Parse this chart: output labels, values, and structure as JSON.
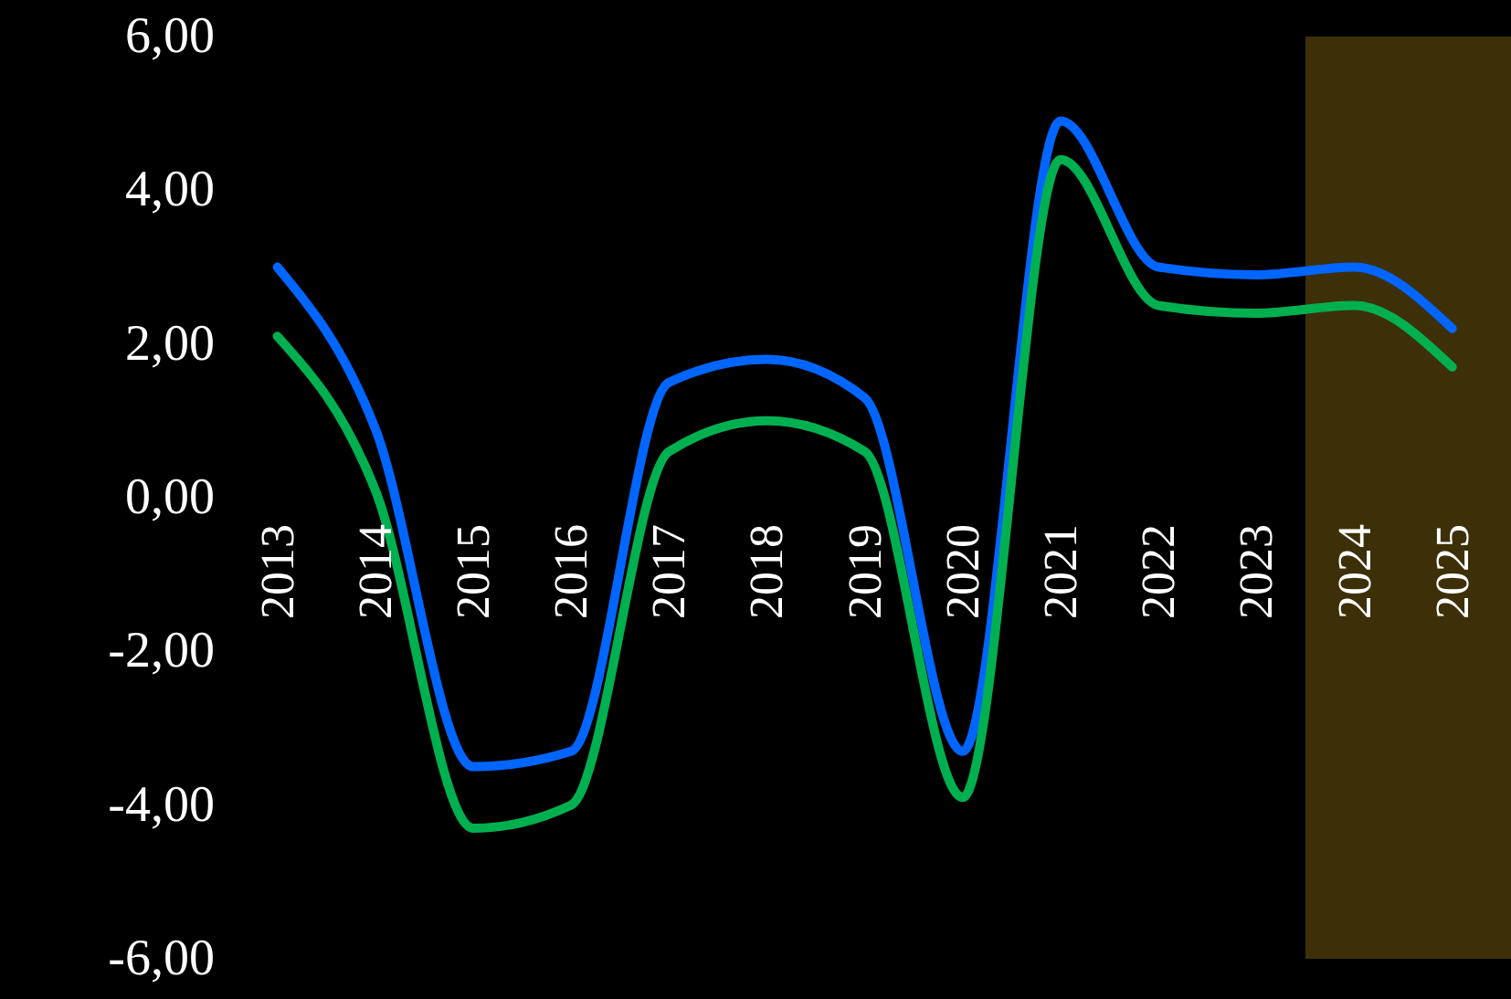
{
  "chart_data": {
    "type": "line",
    "categories": [
      "2013",
      "2014",
      "2015",
      "2016",
      "2017",
      "2018",
      "2019",
      "2020",
      "2021",
      "2022",
      "2023",
      "2024",
      "2025"
    ],
    "series": [
      {
        "color": "#0066ff",
        "values": [
          3.0,
          0.9,
          -3.5,
          -3.3,
          1.5,
          1.8,
          1.3,
          -3.3,
          4.9,
          3.0,
          2.9,
          3.0,
          2.2
        ]
      },
      {
        "color": "#00b050",
        "values": [
          2.1,
          0.1,
          -4.3,
          -4.0,
          0.6,
          1.0,
          0.6,
          -3.9,
          4.4,
          2.5,
          2.4,
          2.5,
          1.7
        ]
      }
    ],
    "ylim": [
      -6,
      6
    ],
    "yticks": [
      {
        "value": -6,
        "label": "-6,00"
      },
      {
        "value": -4,
        "label": "-4,00"
      },
      {
        "value": -2,
        "label": "-2,00"
      },
      {
        "value": 0,
        "label": "0,00"
      },
      {
        "value": 2,
        "label": "2,00"
      },
      {
        "value": 4,
        "label": "4,00"
      },
      {
        "value": 6,
        "label": "6,00"
      }
    ],
    "bands": [
      {
        "axis": "x",
        "from": "2024",
        "to": "2025",
        "color": "#3d3008"
      }
    ],
    "marker": "none",
    "line_style": "solid"
  }
}
